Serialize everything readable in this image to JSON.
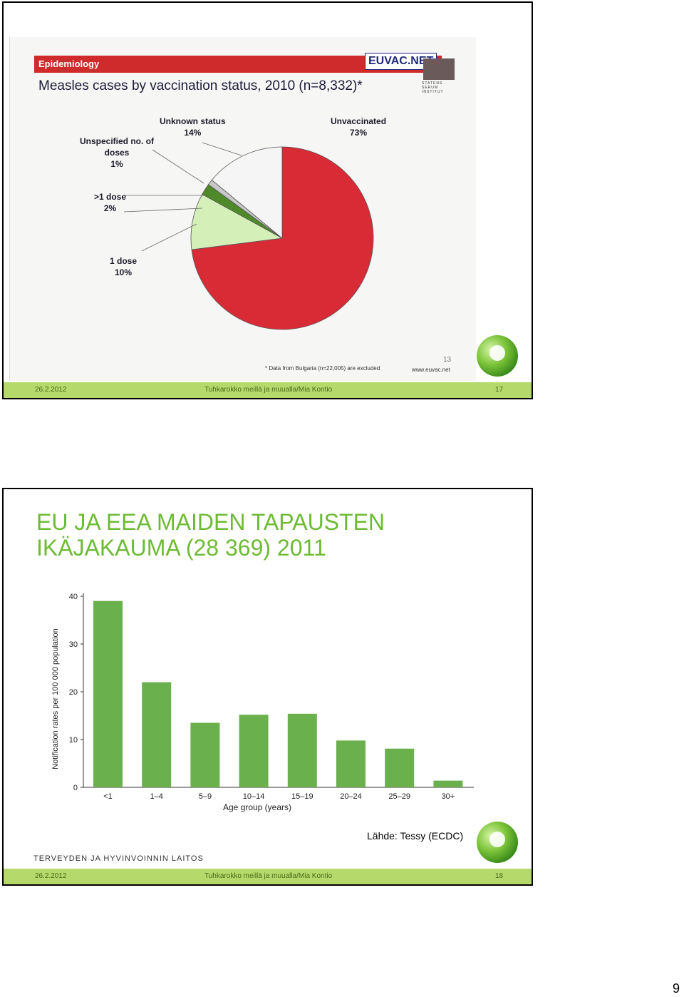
{
  "slide1": {
    "section_label": "Epidemiology",
    "logo_text": "EUVAC.NET",
    "institute_text": "STATENS SERUM INSTITUT",
    "title": "Measles cases by vaccination status, 2010 (n=8,332)*",
    "footnote": "* Data from Bulgaria (n=22,005) are excluded",
    "site": "www.euvac.net",
    "page_number": "13",
    "footer": {
      "date": "26.2.2012",
      "text": "Tuhkarokko meillä ja muualla/Mia Kontio",
      "number": "17"
    }
  },
  "slide2": {
    "title_line1": "EU JA EEA MAIDEN TAPAUSTEN",
    "title_line2": "IKÄJAKAUMA (28 369) 2011",
    "source": "Lähde: Tessy (ECDC)",
    "institute": "TERVEYDEN JA HYVINVOINNIN LAITOS",
    "footer": {
      "date": "26.2.2012",
      "text": "Tuhkarokko meillä ja muualla/Mia Kontio",
      "number": "18"
    }
  },
  "document_page_number": "9",
  "colors": {
    "green": "#6ab04c",
    "red": "#d92b36",
    "footer": "#b5d96a",
    "title_green": "#6dbb34"
  },
  "chart_data": [
    {
      "type": "pie",
      "title": "Measles cases by vaccination status, 2010 (n=8,332)*",
      "slices": [
        {
          "name": "Unvaccinated",
          "value": 73,
          "label": "73%",
          "color": "#d92b36"
        },
        {
          "name": "1 dose",
          "value": 10,
          "label": "10%",
          "color": "#d5efb8"
        },
        {
          "name": ">1 dose",
          "value": 2,
          "label": "2%",
          "color": "#4f8a2a"
        },
        {
          "name": "Unspecified no. of doses",
          "value": 1,
          "label": "1%",
          "color": "#c8c8c8"
        },
        {
          "name": "Unknown status",
          "value": 14,
          "label": "14%",
          "color": "#f5f5f5"
        }
      ]
    },
    {
      "type": "bar",
      "title": "EU JA EEA MAIDEN TAPAUSTEN IKÄJAKAUMA (28 369) 2011",
      "categories": [
        "<1",
        "1–4",
        "5–9",
        "10–14",
        "15–19",
        "20–24",
        "25–29",
        "30+"
      ],
      "values": [
        39,
        22,
        13.5,
        15.2,
        15.4,
        9.8,
        8.1,
        1.4
      ],
      "xlabel": "Age group (years)",
      "ylabel": "Notification rates per 100 000 population",
      "ylim": [
        0,
        40
      ],
      "yticks": [
        "0",
        "10",
        "20",
        "30",
        "40"
      ],
      "color": "#6ab04c"
    }
  ]
}
